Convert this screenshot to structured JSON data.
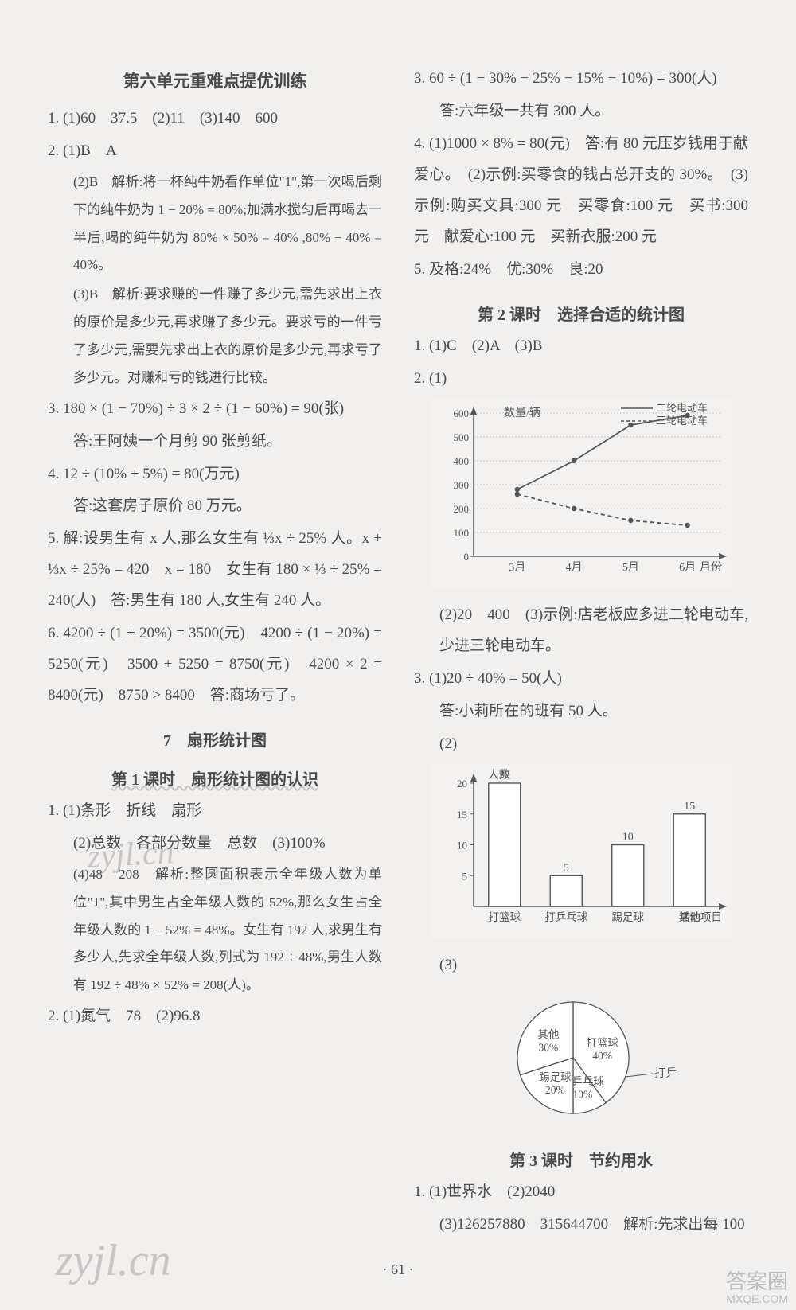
{
  "left": {
    "section_title": "第六单元重难点提优训练",
    "q1": "1. (1)60　37.5　(2)11　(3)140　600",
    "q2a": "2. (1)B　A",
    "q2b": "(2)B　解析:将一杯纯牛奶看作单位\"1\",第一次喝后剩下的纯牛奶为 1 − 20% = 80%;加满水搅匀后再喝去一半后,喝的纯牛奶为 80% × 50% = 40% ,80% − 40% = 40%。",
    "q2c": "(3)B　解析:要求赚的一件赚了多少元,需先求出上衣的原价是多少元,再求赚了多少元。要求亏的一件亏了多少元,需要先求出上衣的原价是多少元,再求亏了多少元。对赚和亏的钱进行比较。",
    "q3a": "3. 180 × (1 − 70%) ÷ 3 × 2 ÷ (1 − 60%) = 90(张)",
    "q3b": "答:王阿姨一个月剪 90 张剪纸。",
    "q4a": "4. 12 ÷ (10% + 5%) = 80(万元)",
    "q4b": "答:这套房子原价 80 万元。",
    "q5a": "5. 解:设男生有 x 人,那么女生有 ⅓x ÷ 25% 人。x + ⅓x ÷ 25% = 420　x = 180　女生有 180 × ⅓ ÷ 25% = 240(人)　答:男生有 180 人,女生有 240 人。",
    "q6": "6. 4200 ÷ (1 + 20%) = 3500(元)　4200 ÷ (1 − 20%) = 5250(元)　3500 + 5250 = 8750(元)　4200 × 2 = 8400(元)　8750 > 8400　答:商场亏了。",
    "sec7": "7　扇形统计图",
    "sec7_1": "第 1 课时　扇形统计图的认识",
    "s7_1": "1. (1)条形　折线　扇形",
    "s7_2": "(2)总数　各部分数量　总数　(3)100%",
    "s7_4": "(4)48　208　解析:整圆面积表示全年级人数为单位\"1\",其中男生占全年级人数的 52%,那么女生占全年级人数的 1 − 52% = 48%。女生有 192 人,求男生有多少人,先求全年级人数,列式为 192 ÷ 48%,男生人数有 192 ÷ 48% × 52% = 208(人)。",
    "s7_q2": "2. (1)氮气　78　(2)96.8"
  },
  "right": {
    "q3a": "3. 60 ÷ (1 − 30% − 25% − 15% − 10%) = 300(人)",
    "q3b": "答:六年级一共有 300 人。",
    "q4": "4. (1)1000 × 8% = 80(元)　答:有 80 元压岁钱用于献爱心。　(2)示例:买零食的钱占总开支的 30%。　(3)示例:购买文具:300 元　买零食:100 元　买书:300 元　献爱心:100 元　买新衣服:200 元",
    "q5": "5. 及格:24%　优:30%　良:20",
    "sec2": "第 2 课时　选择合适的统计图",
    "s2_1": "1. (1)C　(2)A　(3)B",
    "s2_2_1": "2. (1)",
    "line_chart": {
      "title_left": "数量/辆",
      "legend": [
        "二轮电动车",
        "三轮电动车"
      ],
      "x_labels": [
        "3月",
        "4月",
        "5月",
        "6月"
      ],
      "x_axis_label": "月份",
      "y_ticks": [
        0,
        100,
        200,
        300,
        400,
        500,
        600
      ],
      "series_a": [
        280,
        400,
        550,
        590
      ],
      "series_b": [
        260,
        200,
        150,
        130
      ],
      "color_a": "#555555",
      "color_b": "#555555",
      "bg": "#f4f2f0"
    },
    "s2_2_2": "(2)20　400　(3)示例:店老板应多进二轮电动车,少进三轮电动车。",
    "s2_3a": "3. (1)20 ÷ 40% = 50(人)",
    "s2_3b": "答:小莉所在的班有 50 人。",
    "s2_3_2": "(2)",
    "bar_chart": {
      "y_label": "人数",
      "y_ticks": [
        5,
        10,
        15,
        20
      ],
      "x_labels": [
        "打篮球",
        "打乒乓球",
        "踢足球",
        "其他"
      ],
      "x_axis_label": "活动项目",
      "values": [
        20,
        5,
        10,
        15
      ],
      "data_labels": [
        "20",
        "5",
        "10",
        "15"
      ],
      "bar_fill": "#ffffff",
      "bar_stroke": "#555555",
      "bg": "#f4f2f0"
    },
    "s2_3_3": "(3)",
    "pie_chart": {
      "slices": [
        {
          "label": "打篮球",
          "sub": "40%",
          "value": 40
        },
        {
          "label": "打乒乓球",
          "sub": "10%",
          "value": 10
        },
        {
          "label": "踢足球",
          "sub": "20%",
          "value": 20
        },
        {
          "label": "其他",
          "sub": "30%",
          "value": 30
        }
      ],
      "radius": 70,
      "fill": "#ffffff",
      "stroke": "#555555"
    },
    "sec3": "第 3 课时　节约用水",
    "s3_1": "1. (1)世界水　(2)2040",
    "s3_3": "(3)126257880　315644700　解析:先求出每 100"
  },
  "page_num": "· 61 ·",
  "wm1": "zyjl.cn",
  "wm2": "zyjl.cn",
  "badge1": "答案圈",
  "badge2": "MXQE.COM"
}
